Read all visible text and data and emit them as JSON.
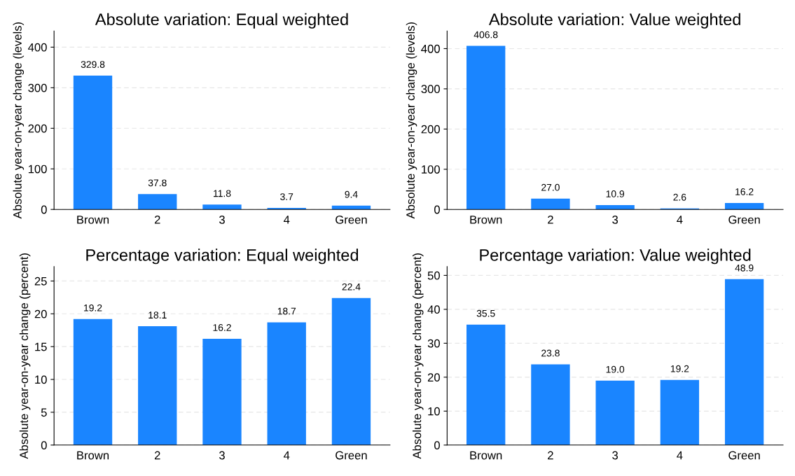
{
  "chart_data": [
    {
      "type": "bar",
      "title": "Absolute variation: Equal weighted",
      "ylabel": "Absolute year-on-year change (levels)",
      "categories": [
        "Brown",
        "2",
        "3",
        "4",
        "Green"
      ],
      "values": [
        329.8,
        37.8,
        11.8,
        3.7,
        9.4
      ],
      "color": "#1a85ff",
      "ylim": [
        0,
        440
      ],
      "yticks": [
        0,
        100,
        200,
        300,
        400
      ],
      "grid": "y",
      "data_labels": true
    },
    {
      "type": "bar",
      "title": "Absolute variation: Value weighted",
      "ylabel": "Absolute year-on-year change (levels)",
      "categories": [
        "Brown",
        "2",
        "3",
        "4",
        "Green"
      ],
      "values": [
        406.8,
        27.0,
        10.9,
        2.6,
        16.2
      ],
      "value_labels": [
        "406.8",
        "27.0",
        "10.9",
        "2.6",
        "16.2"
      ],
      "color": "#1a85ff",
      "ylim": [
        0,
        444
      ],
      "yticks": [
        0,
        100,
        200,
        300,
        400
      ],
      "grid": "y"
    },
    {
      "type": "bar",
      "title": "Percentage variation: Equal weighted",
      "ylabel": "Absolute year-on-year change (percent)",
      "categories": [
        "Brown",
        "2",
        "3",
        "4",
        "Green"
      ],
      "values": [
        19.2,
        18.1,
        16.2,
        18.7,
        22.4
      ],
      "color": "#1a85ff",
      "ylim": [
        0,
        27.2
      ],
      "yticks": [
        0,
        5,
        10,
        15,
        20,
        25
      ],
      "grid": "y",
      "data_labels": true
    },
    {
      "type": "bar",
      "title": "Percentage variation: Value weighted",
      "ylabel": "Absolute year-on-year change (percent)",
      "categories": [
        "Brown",
        "2",
        "3",
        "4",
        "Green"
      ],
      "values": [
        35.5,
        23.8,
        19.0,
        19.2,
        48.9
      ],
      "value_labels": [
        "35.5",
        "23.8",
        "19.0",
        "19.2",
        "48.9"
      ],
      "color": "#1a85ff",
      "ylim": [
        0,
        52.6
      ],
      "yticks": [
        0,
        10,
        20,
        30,
        40,
        50
      ],
      "grid": "y"
    }
  ]
}
